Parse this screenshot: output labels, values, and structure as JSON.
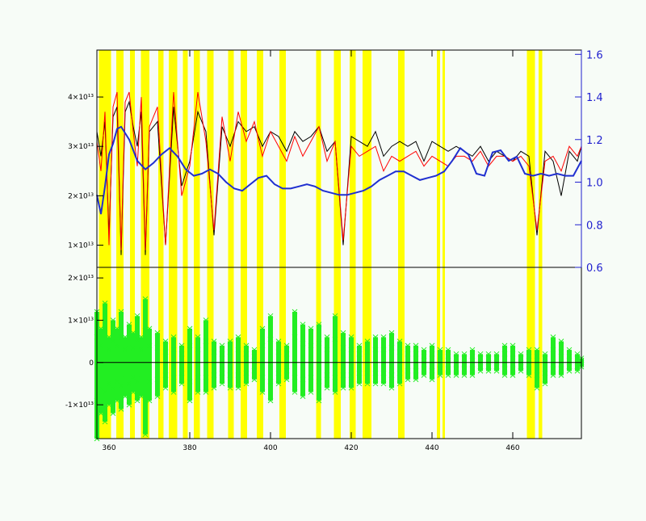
{
  "chart_data": [
    {
      "panel": "top",
      "type": "line",
      "title": "",
      "xlabel": "",
      "ylabel": "",
      "xlim": [
        357,
        477
      ],
      "ylim": [
        5500000000000,
        49500000000000
      ],
      "y2lim": [
        0.6,
        1.62
      ],
      "x_ticks": [
        380,
        400,
        420,
        440,
        460
      ],
      "x_tick_labels": [
        "380",
        "400",
        "420",
        "440",
        "460"
      ],
      "y_ticks": [
        10000000000000,
        20000000000000,
        30000000000000,
        40000000000000
      ],
      "y_tick_labels": [
        "1×10¹³",
        "2×10¹³",
        "3×10¹³",
        "4×10¹³"
      ],
      "y2_ticks": [
        0.6,
        0.8,
        1.0,
        1.2,
        1.4,
        1.6
      ],
      "y2_tick_labels": [
        "0.6",
        "0.8",
        "1.0",
        "1.2",
        "1.4",
        "1.6"
      ],
      "highlight_bands": [
        [
          357.5,
          360.5
        ],
        [
          361.8,
          363.6
        ],
        [
          365.2,
          366.4
        ],
        [
          367.9,
          370.0
        ],
        [
          372.2,
          373.5
        ],
        [
          374.8,
          376.9
        ],
        [
          378.3,
          379.5
        ],
        [
          381.0,
          382.5
        ],
        [
          384.3,
          385.9
        ],
        [
          389.5,
          390.9
        ],
        [
          392.6,
          394.2
        ],
        [
          396.6,
          398.2
        ],
        [
          402.2,
          403.8
        ],
        [
          411.3,
          412.5
        ],
        [
          415.7,
          417.4
        ],
        [
          419.6,
          421.1
        ],
        [
          422.8,
          425.0
        ],
        [
          431.6,
          433.2
        ],
        [
          441.2,
          442.0
        ],
        [
          442.6,
          443.2
        ],
        [
          463.5,
          465.5
        ],
        [
          466.4,
          467.3
        ]
      ],
      "series": [
        {
          "name": "",
          "color": "#000000",
          "axis": "left",
          "x": [
            357,
            358,
            359,
            360,
            361,
            362,
            363,
            364,
            365,
            366,
            367,
            368,
            369,
            370,
            372,
            374,
            376,
            378,
            380,
            382,
            384,
            386,
            388,
            390,
            392,
            394,
            396,
            398,
            400,
            402,
            404,
            406,
            408,
            410,
            412,
            414,
            416,
            418,
            420,
            422,
            424,
            426,
            428,
            430,
            432,
            434,
            436,
            438,
            440,
            442,
            444,
            446,
            448,
            450,
            452,
            454,
            456,
            458,
            460,
            462,
            464,
            466,
            468,
            470,
            472,
            474,
            476,
            477
          ],
          "y": [
            33000000000000,
            28000000000000,
            35000000000000,
            12000000000000,
            36000000000000,
            38000000000000,
            8000000000000,
            37000000000000,
            39000000000000,
            34000000000000,
            30000000000000,
            37000000000000,
            8000000000000,
            33000000000000,
            35000000000000,
            10000000000000,
            38000000000000,
            22000000000000,
            27000000000000,
            37000000000000,
            33000000000000,
            12000000000000,
            34000000000000,
            30000000000000,
            35000000000000,
            33000000000000,
            34000000000000,
            30000000000000,
            33000000000000,
            32000000000000,
            29000000000000,
            33000000000000,
            31000000000000,
            32000000000000,
            34000000000000,
            29000000000000,
            31000000000000,
            10000000000000,
            32000000000000,
            31000000000000,
            30000000000000,
            33000000000000,
            28000000000000,
            30000000000000,
            31000000000000,
            30000000000000,
            31000000000000,
            27000000000000,
            31000000000000,
            30000000000000,
            29000000000000,
            30000000000000,
            29000000000000,
            28000000000000,
            30000000000000,
            27000000000000,
            29000000000000,
            28000000000000,
            27000000000000,
            29000000000000,
            28000000000000,
            12000000000000,
            29000000000000,
            27000000000000,
            20000000000000,
            29000000000000,
            27000000000000,
            30000000000000
          ]
        },
        {
          "name": "",
          "color": "#ff0000",
          "axis": "left",
          "x": [
            357,
            358,
            359,
            360,
            361,
            362,
            363,
            364,
            365,
            366,
            367,
            368,
            369,
            370,
            372,
            374,
            376,
            378,
            380,
            382,
            384,
            386,
            388,
            390,
            392,
            394,
            396,
            398,
            400,
            402,
            404,
            406,
            408,
            410,
            412,
            414,
            416,
            418,
            420,
            422,
            424,
            426,
            428,
            430,
            432,
            434,
            436,
            438,
            440,
            442,
            444,
            446,
            448,
            450,
            452,
            454,
            456,
            458,
            460,
            462,
            464,
            466,
            468,
            470,
            472,
            474,
            476,
            477
          ],
          "y": [
            31000000000000,
            25000000000000,
            37000000000000,
            10000000000000,
            38000000000000,
            41000000000000,
            9000000000000,
            39000000000000,
            41000000000000,
            33000000000000,
            26000000000000,
            40000000000000,
            9000000000000,
            34000000000000,
            38000000000000,
            10000000000000,
            41000000000000,
            20000000000000,
            26000000000000,
            41000000000000,
            31000000000000,
            13000000000000,
            36000000000000,
            27000000000000,
            37000000000000,
            31000000000000,
            35000000000000,
            28000000000000,
            33000000000000,
            30000000000000,
            27000000000000,
            32000000000000,
            28000000000000,
            31000000000000,
            34000000000000,
            27000000000000,
            31000000000000,
            11000000000000,
            30000000000000,
            28000000000000,
            29000000000000,
            30000000000000,
            25000000000000,
            28000000000000,
            27000000000000,
            28000000000000,
            29000000000000,
            26000000000000,
            28000000000000,
            27000000000000,
            26000000000000,
            28000000000000,
            28000000000000,
            27000000000000,
            29000000000000,
            26000000000000,
            28000000000000,
            28000000000000,
            27000000000000,
            28000000000000,
            26000000000000,
            13000000000000,
            27000000000000,
            28000000000000,
            25000000000000,
            30000000000000,
            28000000000000,
            30000000000000
          ]
        },
        {
          "name": "",
          "color": "#1f2fd0",
          "axis": "right",
          "x": [
            357,
            358,
            359,
            360,
            361,
            362,
            363,
            365,
            367,
            369,
            371,
            373,
            375,
            377,
            379,
            381,
            383,
            385,
            387,
            389,
            391,
            393,
            395,
            397,
            399,
            401,
            403,
            405,
            407,
            409,
            411,
            413,
            415,
            417,
            419,
            421,
            423,
            425,
            427,
            429,
            431,
            433,
            435,
            437,
            439,
            441,
            443,
            445,
            447,
            449,
            451,
            453,
            455,
            457,
            459,
            461,
            463,
            465,
            467,
            469,
            471,
            473,
            475,
            477
          ],
          "y": [
            0.94,
            0.85,
            0.98,
            1.13,
            1.18,
            1.25,
            1.26,
            1.2,
            1.1,
            1.06,
            1.09,
            1.13,
            1.16,
            1.12,
            1.06,
            1.03,
            1.04,
            1.06,
            1.04,
            1.0,
            0.97,
            0.96,
            0.99,
            1.02,
            1.03,
            0.99,
            0.97,
            0.97,
            0.98,
            0.99,
            0.98,
            0.96,
            0.95,
            0.94,
            0.94,
            0.95,
            0.96,
            0.98,
            1.01,
            1.03,
            1.05,
            1.05,
            1.03,
            1.01,
            1.02,
            1.03,
            1.05,
            1.1,
            1.16,
            1.13,
            1.04,
            1.03,
            1.14,
            1.15,
            1.1,
            1.12,
            1.04,
            1.03,
            1.04,
            1.03,
            1.04,
            1.03,
            1.03,
            1.1
          ]
        }
      ]
    },
    {
      "panel": "bottom",
      "type": "scatter",
      "title": "",
      "xlabel": "",
      "ylabel": "",
      "xlim": [
        357,
        477
      ],
      "ylim": [
        -18000000000000,
        22500000000000
      ],
      "x_ticks": [
        380,
        400,
        420,
        440,
        460
      ],
      "x_tick_labels": [
        "380",
        "400",
        "420",
        "440",
        "460"
      ],
      "y_ticks": [
        -10000000000000,
        0,
        10000000000000,
        20000000000000
      ],
      "y_tick_labels": [
        "-1×10¹³",
        "0",
        "1×10¹³",
        "2×10¹³"
      ],
      "zero_line": true,
      "series": [
        {
          "name": "",
          "color": "#22ee22",
          "marker": "x",
          "x": [
            357,
            358,
            359,
            360,
            361,
            362,
            363,
            364,
            365,
            366,
            367,
            368,
            369,
            370,
            372,
            374,
            376,
            378,
            380,
            382,
            384,
            386,
            388,
            390,
            392,
            394,
            396,
            398,
            400,
            402,
            404,
            406,
            408,
            410,
            412,
            414,
            416,
            418,
            420,
            422,
            424,
            426,
            428,
            430,
            432,
            434,
            436,
            438,
            440,
            442,
            444,
            446,
            448,
            450,
            452,
            454,
            456,
            458,
            460,
            462,
            464,
            466,
            468,
            470,
            472,
            474,
            476,
            477
          ],
          "y_high": [
            12000000000000,
            8000000000000,
            14000000000000,
            6000000000000,
            10000000000000,
            8000000000000,
            12000000000000,
            6000000000000,
            9000000000000,
            7000000000000,
            11000000000000,
            6000000000000,
            15000000000000,
            8000000000000,
            7000000000000,
            5000000000000,
            6000000000000,
            4000000000000,
            8000000000000,
            6000000000000,
            10000000000000,
            5000000000000,
            4000000000000,
            5000000000000,
            6000000000000,
            4000000000000,
            3000000000000,
            8000000000000,
            11000000000000,
            5000000000000,
            4000000000000,
            12000000000000,
            9000000000000,
            8000000000000,
            9000000000000,
            6000000000000,
            11000000000000,
            7000000000000,
            6000000000000,
            4000000000000,
            5000000000000,
            6000000000000,
            6000000000000,
            7000000000000,
            5000000000000,
            4000000000000,
            4000000000000,
            3000000000000,
            4000000000000,
            3000000000000,
            3000000000000,
            2000000000000,
            2000000000000,
            3000000000000,
            2000000000000,
            2000000000000,
            2000000000000,
            4000000000000,
            4000000000000,
            2000000000000,
            3000000000000,
            3000000000000,
            2000000000000,
            6000000000000,
            5000000000000,
            3000000000000,
            2000000000000,
            1000000000000
          ],
          "y_low": [
            -18000000000000,
            -12000000000000,
            -14000000000000,
            -10000000000000,
            -12000000000000,
            -9000000000000,
            -11000000000000,
            -8000000000000,
            -10000000000000,
            -7000000000000,
            -9000000000000,
            -8000000000000,
            -17000000000000,
            -9000000000000,
            -8000000000000,
            -6000000000000,
            -7000000000000,
            -5000000000000,
            -9000000000000,
            -7000000000000,
            -7000000000000,
            -6000000000000,
            -5000000000000,
            -6000000000000,
            -6000000000000,
            -5000000000000,
            -4000000000000,
            -7000000000000,
            -9000000000000,
            -5000000000000,
            -4000000000000,
            -7000000000000,
            -8000000000000,
            -7000000000000,
            -9000000000000,
            -6000000000000,
            -7000000000000,
            -6000000000000,
            -6000000000000,
            -5000000000000,
            -5000000000000,
            -5000000000000,
            -5000000000000,
            -6000000000000,
            -5000000000000,
            -4000000000000,
            -4000000000000,
            -3000000000000,
            -4000000000000,
            -3000000000000,
            -3000000000000,
            -3000000000000,
            -3000000000000,
            -3000000000000,
            -2000000000000,
            -2000000000000,
            -2000000000000,
            -3000000000000,
            -3000000000000,
            -2000000000000,
            -3000000000000,
            -6000000000000,
            -5000000000000,
            -3000000000000,
            -3000000000000,
            -2000000000000,
            -2000000000000,
            -1000000000000
          ]
        }
      ]
    }
  ]
}
